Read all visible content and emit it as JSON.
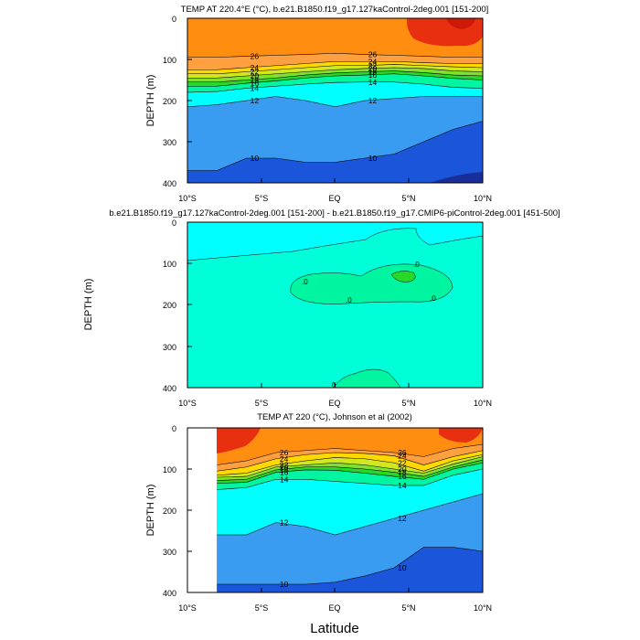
{
  "colors": {
    "levels": [
      "#0a2cc0",
      "#1a55da",
      "#2a7ae8",
      "#3a9cf0",
      "#4cc0f8",
      "#35d8ff",
      "#00ffff",
      "#00ffd8",
      "#00f5a0",
      "#28d828",
      "#80e030",
      "#d0e820",
      "#ffd800",
      "#ffb000",
      "#ff8e10",
      "#ffa040",
      "#f06020",
      "#e83010"
    ]
  },
  "xlabel": "Latitude",
  "x_ticks": [
    "10°S",
    "5°S",
    "EQ",
    "5°N",
    "10°N"
  ],
  "y_ticks": [
    "0",
    "100",
    "200",
    "300",
    "400"
  ],
  "panels": [
    {
      "title": "TEMP AT 220.4°E (°C), b.e21.B1850.f19_g17.127kaControl-2deg.001 [151-200]",
      "ylabel": "DEPTH (m)"
    },
    {
      "title": "b.e21.B1850.f19_g17.127kaControl-2deg.001 [151-200] - b.e21.B1850.f19_g17.CMIP6-piControl-2deg.001 [451-500]",
      "ylabel": "DEPTH (m)"
    },
    {
      "title": "TEMP AT 220 (°C), Johnson et al (2002)",
      "ylabel": "DEPTH (m)"
    }
  ],
  "chart_data": [
    {
      "type": "contour",
      "title": "TEMP AT 220.4°E (°C), b.e21.B1850.f19_g17.127kaControl-2deg.001 [151-200]",
      "xlabel": "",
      "ylabel": "DEPTH (m)",
      "xlim": [
        -10,
        10
      ],
      "ylim": [
        400,
        0
      ],
      "x": [
        -10,
        -8,
        -6,
        -4,
        -2,
        0,
        2,
        4,
        6,
        8,
        10
      ],
      "isotherms": [
        {
          "level": 26,
          "depth": [
            95,
            95,
            92,
            90,
            88,
            85,
            88,
            90,
            92,
            95,
            95
          ]
        },
        {
          "level": 24,
          "depth": [
            125,
            125,
            120,
            115,
            110,
            105,
            105,
            105,
            108,
            110,
            110
          ]
        },
        {
          "level": 22,
          "depth": [
            135,
            135,
            130,
            125,
            120,
            115,
            115,
            112,
            115,
            118,
            120
          ]
        },
        {
          "level": 20,
          "depth": [
            145,
            145,
            140,
            135,
            130,
            125,
            122,
            120,
            122,
            128,
            130
          ]
        },
        {
          "level": 18,
          "depth": [
            155,
            155,
            150,
            145,
            138,
            133,
            130,
            128,
            132,
            138,
            140
          ]
        },
        {
          "level": 16,
          "depth": [
            165,
            165,
            158,
            152,
            145,
            140,
            138,
            135,
            140,
            146,
            150
          ]
        },
        {
          "level": 14,
          "depth": [
            180,
            178,
            170,
            165,
            160,
            156,
            155,
            155,
            160,
            168,
            170
          ]
        },
        {
          "level": 12,
          "depth": [
            215,
            210,
            200,
            190,
            200,
            215,
            200,
            195,
            190,
            190,
            190
          ]
        },
        {
          "level": 10,
          "depth": [
            370,
            370,
            340,
            340,
            350,
            350,
            340,
            330,
            300,
            270,
            250
          ]
        }
      ],
      "labels": [
        "26",
        "24",
        "22",
        "20",
        "18",
        "16",
        "14",
        "12",
        "10"
      ]
    },
    {
      "type": "contour",
      "title": "b.e21.B1850.f19_g17.127kaControl-2deg.001 [151-200] - b.e21.B1850.f19_g17.CMIP6-piControl-2deg.001 [451-500]",
      "xlabel": "",
      "ylabel": "DEPTH (m)",
      "xlim": [
        -10,
        10
      ],
      "ylim": [
        400,
        0
      ],
      "contour_labels": [
        ".0",
        ".0",
        ".0",
        ".0",
        ".0",
        "0"
      ],
      "legend": "none"
    },
    {
      "type": "contour",
      "title": "TEMP AT 220 (°C), Johnson et al (2002)",
      "xlabel": "Latitude",
      "ylabel": "DEPTH (m)",
      "xlim": [
        -10,
        10
      ],
      "ylim": [
        400,
        0
      ],
      "x": [
        -8,
        -6,
        -4,
        -2,
        0,
        2,
        4,
        6,
        8,
        10
      ],
      "isotherms": [
        {
          "level": 26,
          "depth": [
            90,
            80,
            60,
            55,
            50,
            55,
            60,
            70,
            50,
            40
          ]
        },
        {
          "level": 24,
          "depth": [
            105,
            95,
            75,
            65,
            60,
            62,
            68,
            90,
            70,
            55
          ]
        },
        {
          "level": 22,
          "depth": [
            115,
            110,
            90,
            80,
            72,
            75,
            85,
            105,
            80,
            65
          ]
        },
        {
          "level": 20,
          "depth": [
            120,
            118,
            95,
            90,
            85,
            90,
            100,
            110,
            88,
            70
          ]
        },
        {
          "level": 18,
          "depth": [
            128,
            125,
            102,
            95,
            95,
            100,
            108,
            118,
            95,
            78
          ]
        },
        {
          "level": 16,
          "depth": [
            135,
            132,
            108,
            102,
            103,
            110,
            118,
            125,
            100,
            85
          ]
        },
        {
          "level": 14,
          "depth": [
            150,
            145,
            125,
            125,
            130,
            135,
            140,
            140,
            115,
            100
          ]
        },
        {
          "level": 12,
          "depth": [
            260,
            260,
            230,
            240,
            260,
            240,
            220,
            200,
            180,
            160
          ]
        },
        {
          "level": 10,
          "depth": [
            380,
            380,
            380,
            380,
            375,
            360,
            340,
            290,
            290,
            300
          ]
        }
      ],
      "labels": [
        "26",
        "24",
        "22",
        "20",
        "18",
        "16",
        "14",
        "12",
        "10"
      ]
    }
  ]
}
